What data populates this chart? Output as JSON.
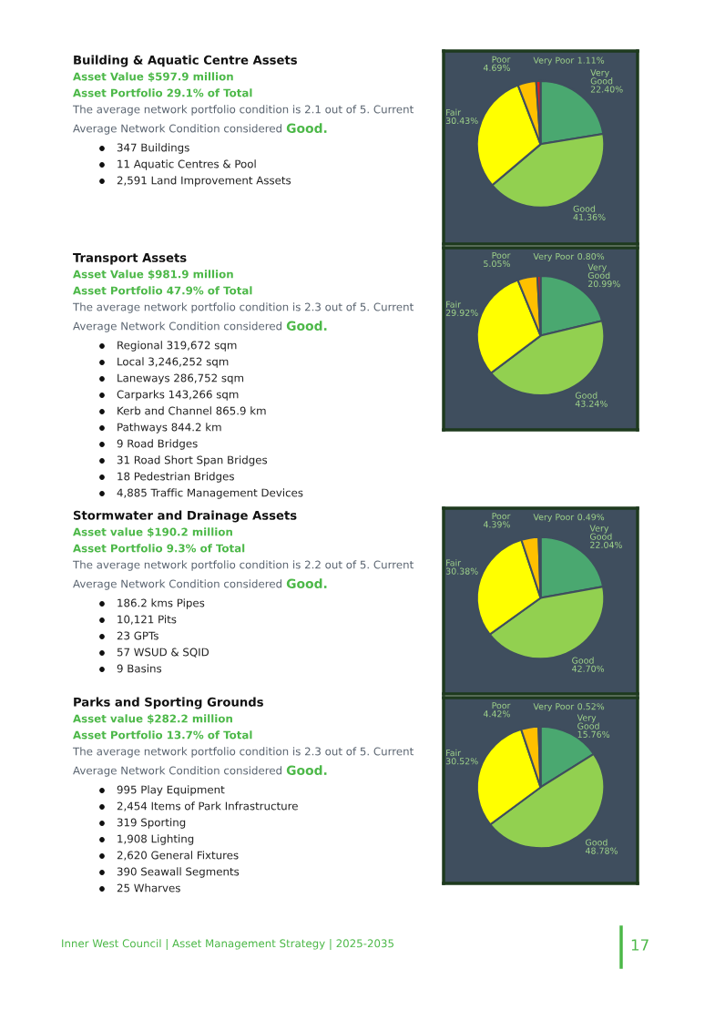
{
  "chart_data": [
    {
      "type": "other",
      "title": "Building & Aquatic Centre Assets",
      "subtitle": "Asset Value $597.9 million\nAsset Portfolio 29.1% of Total",
      "annotations": [
        "The average network portfolio condition is 2.1 out of 5. Current",
        "Average Network Condition considered Good.",
        "347 Buildings",
        "11 Aquatic Centres & Pool",
        "2,591 Land Improvement Assets"
      ]
    },
    {
      "type": "pie",
      "categories": [
        "Very Good",
        "Good",
        "Fair",
        "Poor",
        "Very Poor"
      ],
      "values": [
        22.4,
        41.36,
        30.43,
        4.69,
        1.11
      ],
      "value_labels": [
        "22.40%",
        "41.36%",
        "30.43%",
        "4.69%",
        "1.11%"
      ],
      "colors": [
        "#4aa870",
        "#92d050",
        "#ffff00",
        "#ffc000",
        "#e0201b"
      ]
    },
    {
      "type": "other",
      "title": "Transport Assets",
      "subtitle": "Asset Value $981.9 million\nAsset Portfolio 47.9% of Total",
      "annotations": [
        "The average network portfolio condition is 2.3 out of 5. Current",
        "Average Network Condition considered Good.",
        "Regional 319,672 sqm",
        "Local 3,246,252 sqm",
        "Laneways 286,752 sqm",
        "Carparks 143,266 sqm",
        "Kerb and Channel 865.9 km",
        "Pathways 844.2 km",
        "9 Road Bridges",
        "31 Road Short Span Bridges",
        "18 Pedestrian Bridges",
        "4,885 Traffic Management Devices"
      ]
    },
    {
      "type": "pie",
      "categories": [
        "Very Good",
        "Good",
        "Fair",
        "Poor",
        "Very Poor"
      ],
      "values": [
        20.99,
        43.24,
        29.92,
        5.05,
        0.8
      ],
      "value_labels": [
        "20.99%",
        "43.24%",
        "29.92%",
        "5.05%",
        "0.80%"
      ],
      "colors": [
        "#4aa870",
        "#92d050",
        "#ffff00",
        "#ffc000",
        "#e0201b"
      ]
    },
    {
      "type": "other",
      "title": "Stormwater and Drainage Assets",
      "subtitle": "Asset value $190.2 million\nAsset Portfolio 9.3% of Total",
      "annotations": [
        "The average network portfolio condition is 2.2 out of 5. Current",
        "Average Network Condition considered Good.",
        "186.2 kms Pipes",
        "10,121 Pits",
        "23 GPTs",
        "57 WSUD & SQID",
        "9 Basins"
      ]
    },
    {
      "type": "pie",
      "categories": [
        "Very Good",
        "Good",
        "Fair",
        "Poor",
        "Very Poor"
      ],
      "values": [
        22.04,
        42.7,
        30.38,
        4.39,
        0.49
      ],
      "value_labels": [
        "22.04%",
        "42.70%",
        "30.38%",
        "4.39%",
        "0.49%"
      ],
      "colors": [
        "#4aa870",
        "#92d050",
        "#ffff00",
        "#ffc000",
        "#e0201b"
      ]
    },
    {
      "type": "other",
      "title": "Parks and Sporting Grounds",
      "subtitle": "Asset value $282.2 million\nAsset Portfolio 13.7% of Total",
      "annotations": [
        "The average network portfolio condition is 2.3 out of 5. Current",
        "Average Network Condition considered Good.",
        "995 Play Equipment",
        "2,454 Items of Park Infrastructure",
        "319 Sporting",
        "1,908 Lighting",
        "2,620 General Fixtures",
        "390 Seawall Segments",
        "25 Wharves"
      ]
    },
    {
      "type": "pie",
      "categories": [
        "Very Good",
        "Good",
        "Fair",
        "Poor",
        "Very Poor"
      ],
      "values": [
        15.76,
        48.78,
        30.52,
        4.42,
        0.52
      ],
      "value_labels": [
        "15.76%",
        "48.78%",
        "30.52%",
        "4.42%",
        "0.52%"
      ],
      "colors": [
        "#4aa870",
        "#92d050",
        "#ffff00",
        "#ffc000",
        "#e0201b"
      ]
    },
    {
      "type": "other",
      "title": "Inner West Council | Asset Management Strategy | 2025-2035",
      "annotations": [
        "17"
      ]
    }
  ]
}
